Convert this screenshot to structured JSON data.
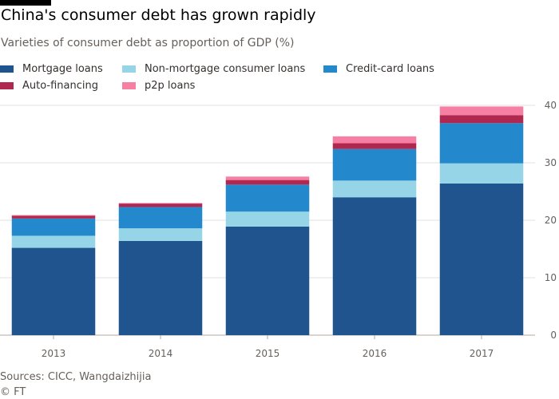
{
  "title": "China's consumer debt has grown rapidly",
  "subtitle": "Varieties of consumer debt as proportion of GDP (%)",
  "source": "Sources: CICC, Wangdaizhijia",
  "credit": "© FT",
  "legend_position": "top",
  "chart_data": {
    "type": "bar",
    "stacked": true,
    "title": "China's consumer debt has grown rapidly",
    "subtitle": "Varieties of consumer debt as proportion of GDP (%)",
    "xlabel": "",
    "ylabel": "",
    "categories": [
      "2013",
      "2014",
      "2015",
      "2016",
      "2017"
    ],
    "ylim": [
      0,
      40
    ],
    "yticks": [
      "0",
      "10",
      "20",
      "30",
      "40"
    ],
    "y_axis_side": "right",
    "grid": "horizontal",
    "legend": "top",
    "series": [
      {
        "name": "Mortgage loans",
        "color": "#1f548f",
        "values": [
          15.2,
          16.4,
          18.9,
          24.0,
          26.4
        ]
      },
      {
        "name": "Non-mortgage consumer loans",
        "color": "#96d4e8",
        "values": [
          2.1,
          2.2,
          2.6,
          2.9,
          3.5
        ]
      },
      {
        "name": "Credit-card loans",
        "color": "#2389cc",
        "values": [
          3.0,
          3.7,
          4.7,
          5.5,
          7.0
        ]
      },
      {
        "name": "Auto-financing",
        "color": "#b0284f",
        "values": [
          0.5,
          0.6,
          0.8,
          1.0,
          1.4
        ]
      },
      {
        "name": "p2p loans",
        "color": "#f77fa4",
        "values": [
          0.1,
          0.1,
          0.6,
          1.2,
          1.5
        ]
      }
    ]
  }
}
